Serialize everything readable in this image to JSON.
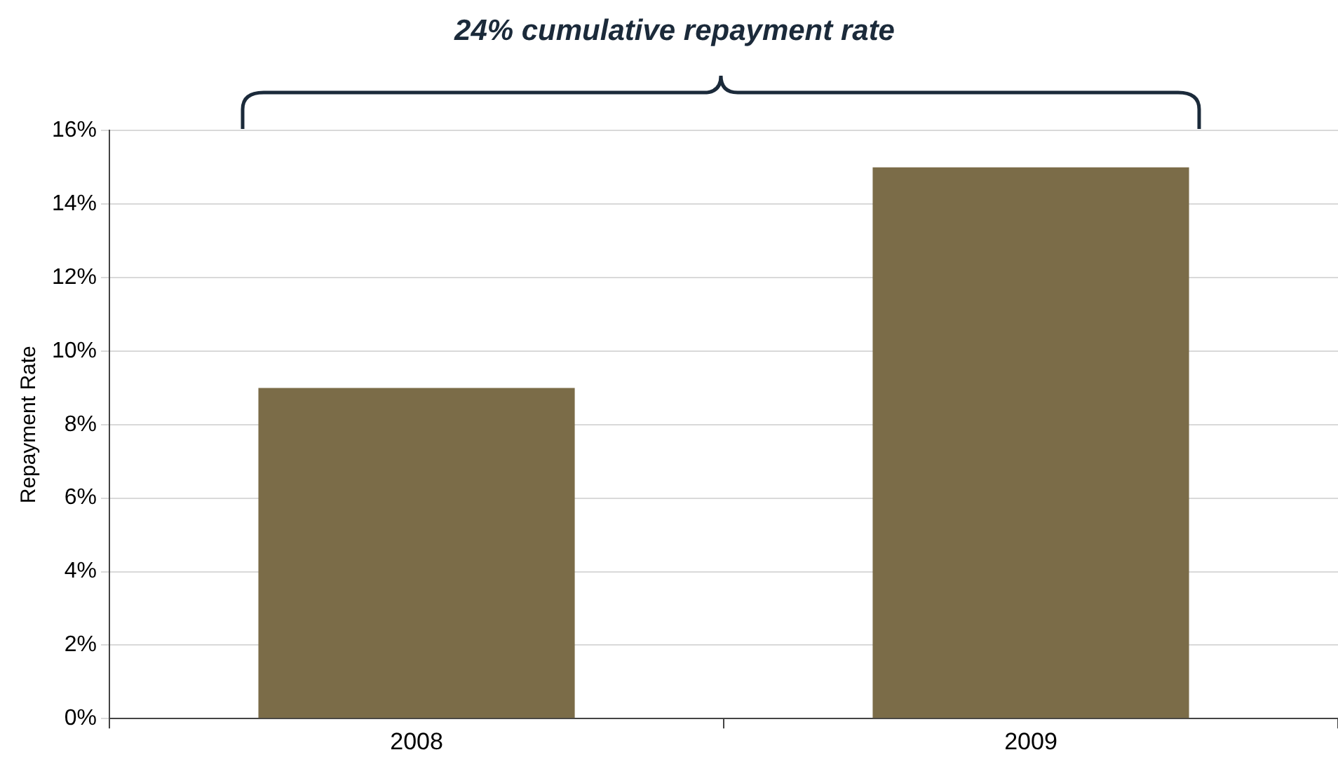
{
  "chart_data": {
    "type": "bar",
    "title": "24% cumulative repayment rate",
    "ylabel": "Repayment Rate",
    "categories": [
      "2008",
      "2009"
    ],
    "values": [
      9,
      15
    ],
    "color": "#7b6c48",
    "ylim": [
      0,
      16
    ],
    "yticks": [
      {
        "value": 0,
        "label": "0%"
      },
      {
        "value": 2,
        "label": "2%"
      },
      {
        "value": 4,
        "label": "4%"
      },
      {
        "value": 6,
        "label": "6%"
      },
      {
        "value": 8,
        "label": "8%"
      },
      {
        "value": 10,
        "label": "10%"
      },
      {
        "value": 12,
        "label": "12%"
      },
      {
        "value": 14,
        "label": "14%"
      },
      {
        "value": 16,
        "label": "16%"
      }
    ],
    "grid": "y"
  }
}
